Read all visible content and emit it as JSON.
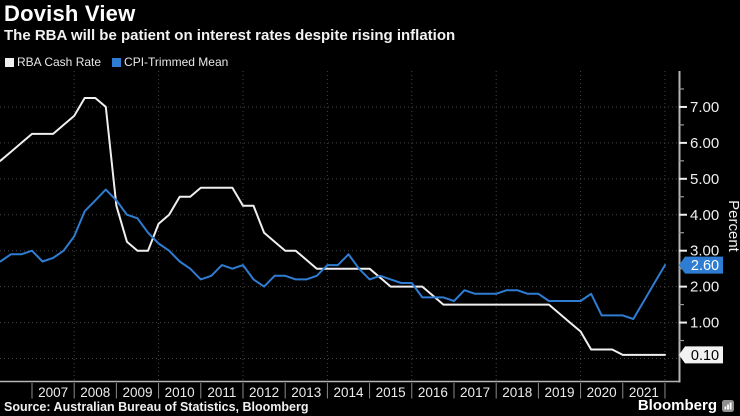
{
  "header": {
    "title": "Dovish View",
    "subtitle": "The RBA will be patient on interest rates despite rising inflation"
  },
  "legend": {
    "items": [
      {
        "label": "RBA Cash Rate",
        "color": "#efefef"
      },
      {
        "label": "CPI-Trimmed Mean",
        "color": "#2e7dd2"
      }
    ]
  },
  "footer": {
    "source": "Source: Australian Bureau of Statistics, Bloomberg",
    "brand": "Bloomberg"
  },
  "colors": {
    "background": "#000000",
    "grid": "#454545",
    "axis": "#b5b5b5",
    "major_tick": "#efefef",
    "minor_tick": "#9a9a9a",
    "tick_label": "#f0f0f0",
    "year_label": "#ececec",
    "separator": "#8c8c8c"
  },
  "chart_data": {
    "type": "line",
    "title": "Dovish View",
    "subtitle": "The RBA will be patient on interest rates despite rising inflation",
    "xlabel": "",
    "ylabel": "Percent",
    "grid": "dotted",
    "legend_position": "top-left",
    "x_unit": "decimal_year_quarter_end",
    "x": [
      2006.25,
      2006.5,
      2006.75,
      2007.0,
      2007.25,
      2007.5,
      2007.75,
      2008.0,
      2008.25,
      2008.5,
      2008.75,
      2009.0,
      2009.25,
      2009.5,
      2009.75,
      2010.0,
      2010.25,
      2010.5,
      2010.75,
      2011.0,
      2011.25,
      2011.5,
      2011.75,
      2012.0,
      2012.25,
      2012.5,
      2012.75,
      2013.0,
      2013.25,
      2013.5,
      2013.75,
      2014.0,
      2014.25,
      2014.5,
      2014.75,
      2015.0,
      2015.25,
      2015.5,
      2015.75,
      2016.0,
      2016.25,
      2016.5,
      2016.75,
      2017.0,
      2017.25,
      2017.5,
      2017.75,
      2018.0,
      2018.25,
      2018.5,
      2018.75,
      2019.0,
      2019.25,
      2019.5,
      2019.75,
      2020.0,
      2020.25,
      2020.5,
      2020.75,
      2021.0,
      2021.25,
      2021.5,
      2021.75,
      2022.0
    ],
    "series": [
      {
        "name": "RBA Cash Rate",
        "color": "#efefef",
        "values": [
          5.5,
          5.75,
          6.0,
          6.25,
          6.25,
          6.25,
          6.5,
          6.75,
          7.25,
          7.25,
          7.0,
          4.25,
          3.25,
          3.0,
          3.0,
          3.75,
          4.0,
          4.5,
          4.5,
          4.75,
          4.75,
          4.75,
          4.75,
          4.25,
          4.25,
          3.5,
          3.25,
          3.0,
          3.0,
          2.75,
          2.5,
          2.5,
          2.5,
          2.5,
          2.5,
          2.5,
          2.25,
          2.0,
          2.0,
          2.0,
          2.0,
          1.75,
          1.5,
          1.5,
          1.5,
          1.5,
          1.5,
          1.5,
          1.5,
          1.5,
          1.5,
          1.5,
          1.5,
          1.25,
          1.0,
          0.75,
          0.25,
          0.25,
          0.25,
          0.1,
          0.1,
          0.1,
          0.1,
          0.1
        ]
      },
      {
        "name": "CPI-Trimmed Mean",
        "color": "#2e7dd2",
        "values": [
          2.7,
          2.9,
          2.9,
          3.0,
          2.7,
          2.8,
          3.0,
          3.4,
          4.1,
          4.4,
          4.7,
          4.4,
          4.0,
          3.9,
          3.5,
          3.2,
          3.0,
          2.7,
          2.5,
          2.2,
          2.3,
          2.6,
          2.5,
          2.6,
          2.2,
          2.0,
          2.3,
          2.3,
          2.2,
          2.2,
          2.3,
          2.6,
          2.6,
          2.9,
          2.5,
          2.2,
          2.3,
          2.2,
          2.1,
          2.1,
          1.7,
          1.7,
          1.7,
          1.6,
          1.9,
          1.8,
          1.8,
          1.8,
          1.9,
          1.9,
          1.8,
          1.8,
          1.6,
          1.6,
          1.6,
          1.6,
          1.8,
          1.2,
          1.2,
          1.2,
          1.1,
          1.6,
          2.1,
          2.6
        ]
      }
    ],
    "ylim": [
      -0.64,
      8.0
    ],
    "xlim_years": [
      2006.242,
      2022.356
    ],
    "yticks": [
      1,
      2,
      3,
      4,
      5,
      6,
      7
    ],
    "ytick_labels": [
      "1.00",
      "2.00",
      "3.00",
      "4.00",
      "5.00",
      "6.00",
      "7.00"
    ],
    "minor_ytick_step": 0.5,
    "x_year_labels": [
      "2007",
      "2008",
      "2009",
      "2010",
      "2011",
      "2012",
      "2013",
      "2014",
      "2015",
      "2016",
      "2017",
      "2018",
      "2019",
      "2020",
      "2021"
    ],
    "grid_h_values": [
      0,
      1,
      2,
      3,
      4,
      5,
      6,
      7
    ],
    "grid_v_years": [
      2008,
      2010,
      2012,
      2014,
      2016,
      2018,
      2020,
      2022
    ],
    "end_value_labels": [
      {
        "series": "CPI-Trimmed Mean",
        "text": "2.60",
        "value": 2.6,
        "bg": "#2e7dd2",
        "text_color": "#ffffff"
      },
      {
        "series": "RBA Cash Rate",
        "text": "0.10",
        "value": 0.1,
        "bg": "#f2f2f2",
        "text_color": "#000000"
      }
    ]
  }
}
